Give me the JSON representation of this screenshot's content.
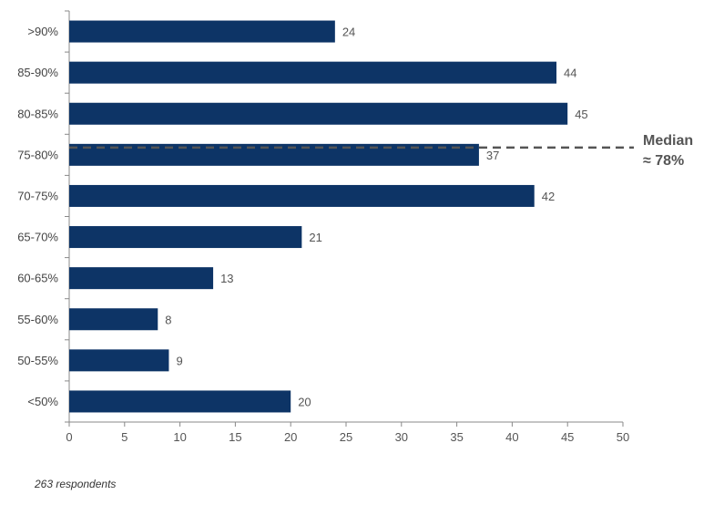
{
  "chart_data": {
    "type": "bar",
    "orientation": "horizontal",
    "categories": [
      ">90%",
      "85-90%",
      "80-85%",
      "75-80%",
      "70-75%",
      "65-70%",
      "60-65%",
      "55-60%",
      "50-55%",
      "<50%"
    ],
    "values": [
      24,
      44,
      45,
      37,
      42,
      21,
      13,
      8,
      9,
      20
    ],
    "xlim": [
      0,
      50
    ],
    "xticks": [
      0,
      5,
      10,
      15,
      20,
      25,
      30,
      35,
      40,
      45,
      50
    ],
    "grid": false,
    "bar_color": "#0d3466",
    "annotation": {
      "line1": "Median",
      "line2": "≈ 78%",
      "style": "dashed",
      "category_position": "75-80%"
    }
  },
  "footnote": "263 respondents"
}
